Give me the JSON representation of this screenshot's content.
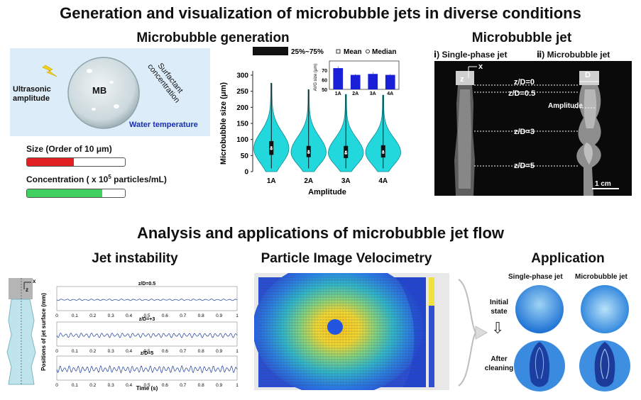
{
  "titles": {
    "top": "Generation and visualization of microbubble jets in diverse conditions",
    "bottom": "Analysis and applications of microbubble jet flow",
    "generation": "Microbubble generation",
    "jet": "Microbubble jet",
    "instability": "Jet instability",
    "piv": "Particle Image Velocimetry",
    "application": "Application"
  },
  "generation_diagram": {
    "mb": "MB",
    "ultrasonic": "Ultrasonic amplitude",
    "surfactant": "Surfactant concentration",
    "water": "Water temperature",
    "size_label": "Size (Order of 10 μm)",
    "size_level": 0.48,
    "conc_prefix": "Concentration ( x 10",
    "conc_exp": "5",
    "conc_suffix": " particles/mL)",
    "conc_level": 0.77,
    "colors": {
      "size": "#e02020",
      "conc": "#40d060"
    }
  },
  "chart_data": {
    "type": "violin",
    "legend": {
      "box": "25%~75%",
      "mean": "Mean",
      "median": "Median",
      "placement": "top"
    },
    "ylabel": "Microbubble size (μm)",
    "xlabel": "Amplitude",
    "ylim": [
      0,
      300
    ],
    "yticks": [
      0,
      50,
      100,
      150,
      200,
      250,
      300
    ],
    "categories": [
      "1A",
      "2A",
      "3A",
      "4A"
    ],
    "max": [
      275,
      255,
      240,
      238
    ],
    "q1": [
      52,
      45,
      42,
      44
    ],
    "q3": [
      95,
      80,
      80,
      82
    ],
    "median": [
      72,
      60,
      58,
      60
    ],
    "mean": [
      76,
      64,
      62,
      63
    ],
    "inset": {
      "ylabel": "AVG size (μm)",
      "ylim": [
        50,
        75
      ],
      "yticks": [
        50,
        60,
        70
      ],
      "categories": [
        "1A",
        "2A",
        "3A",
        "4A"
      ],
      "values": [
        72,
        65,
        66,
        65
      ],
      "errors": [
        2,
        1,
        2,
        1
      ]
    },
    "color": "#22d8dc"
  },
  "jet_panel": {
    "single": "ⅰ) Single-phase jet",
    "bubble": "ⅱ) Microbubble jet",
    "z": "z",
    "x": "x",
    "d": "D",
    "levels": [
      "z/D=0",
      "z/D=0.5",
      "z/D=3",
      "z/D=5"
    ],
    "amplitude": "Amplitude",
    "scale": "1 cm"
  },
  "instability": {
    "ylabel": "Positions of jet surface (mm)",
    "xlabel": "Time (s)",
    "plots": [
      "z/D=0.5",
      "z/D=+3",
      "z/D=5"
    ],
    "xticks": [
      "0",
      "0.1",
      "0.2",
      "0.3",
      "0.4",
      "0.5",
      "0.6",
      "0.7",
      "0.8",
      "0.9",
      "1"
    ],
    "z": "z",
    "x": "x"
  },
  "application": {
    "single": "Single-phase jet",
    "bubble": "Microbubble jet",
    "initial": "Initial state",
    "after": "After cleaning"
  }
}
